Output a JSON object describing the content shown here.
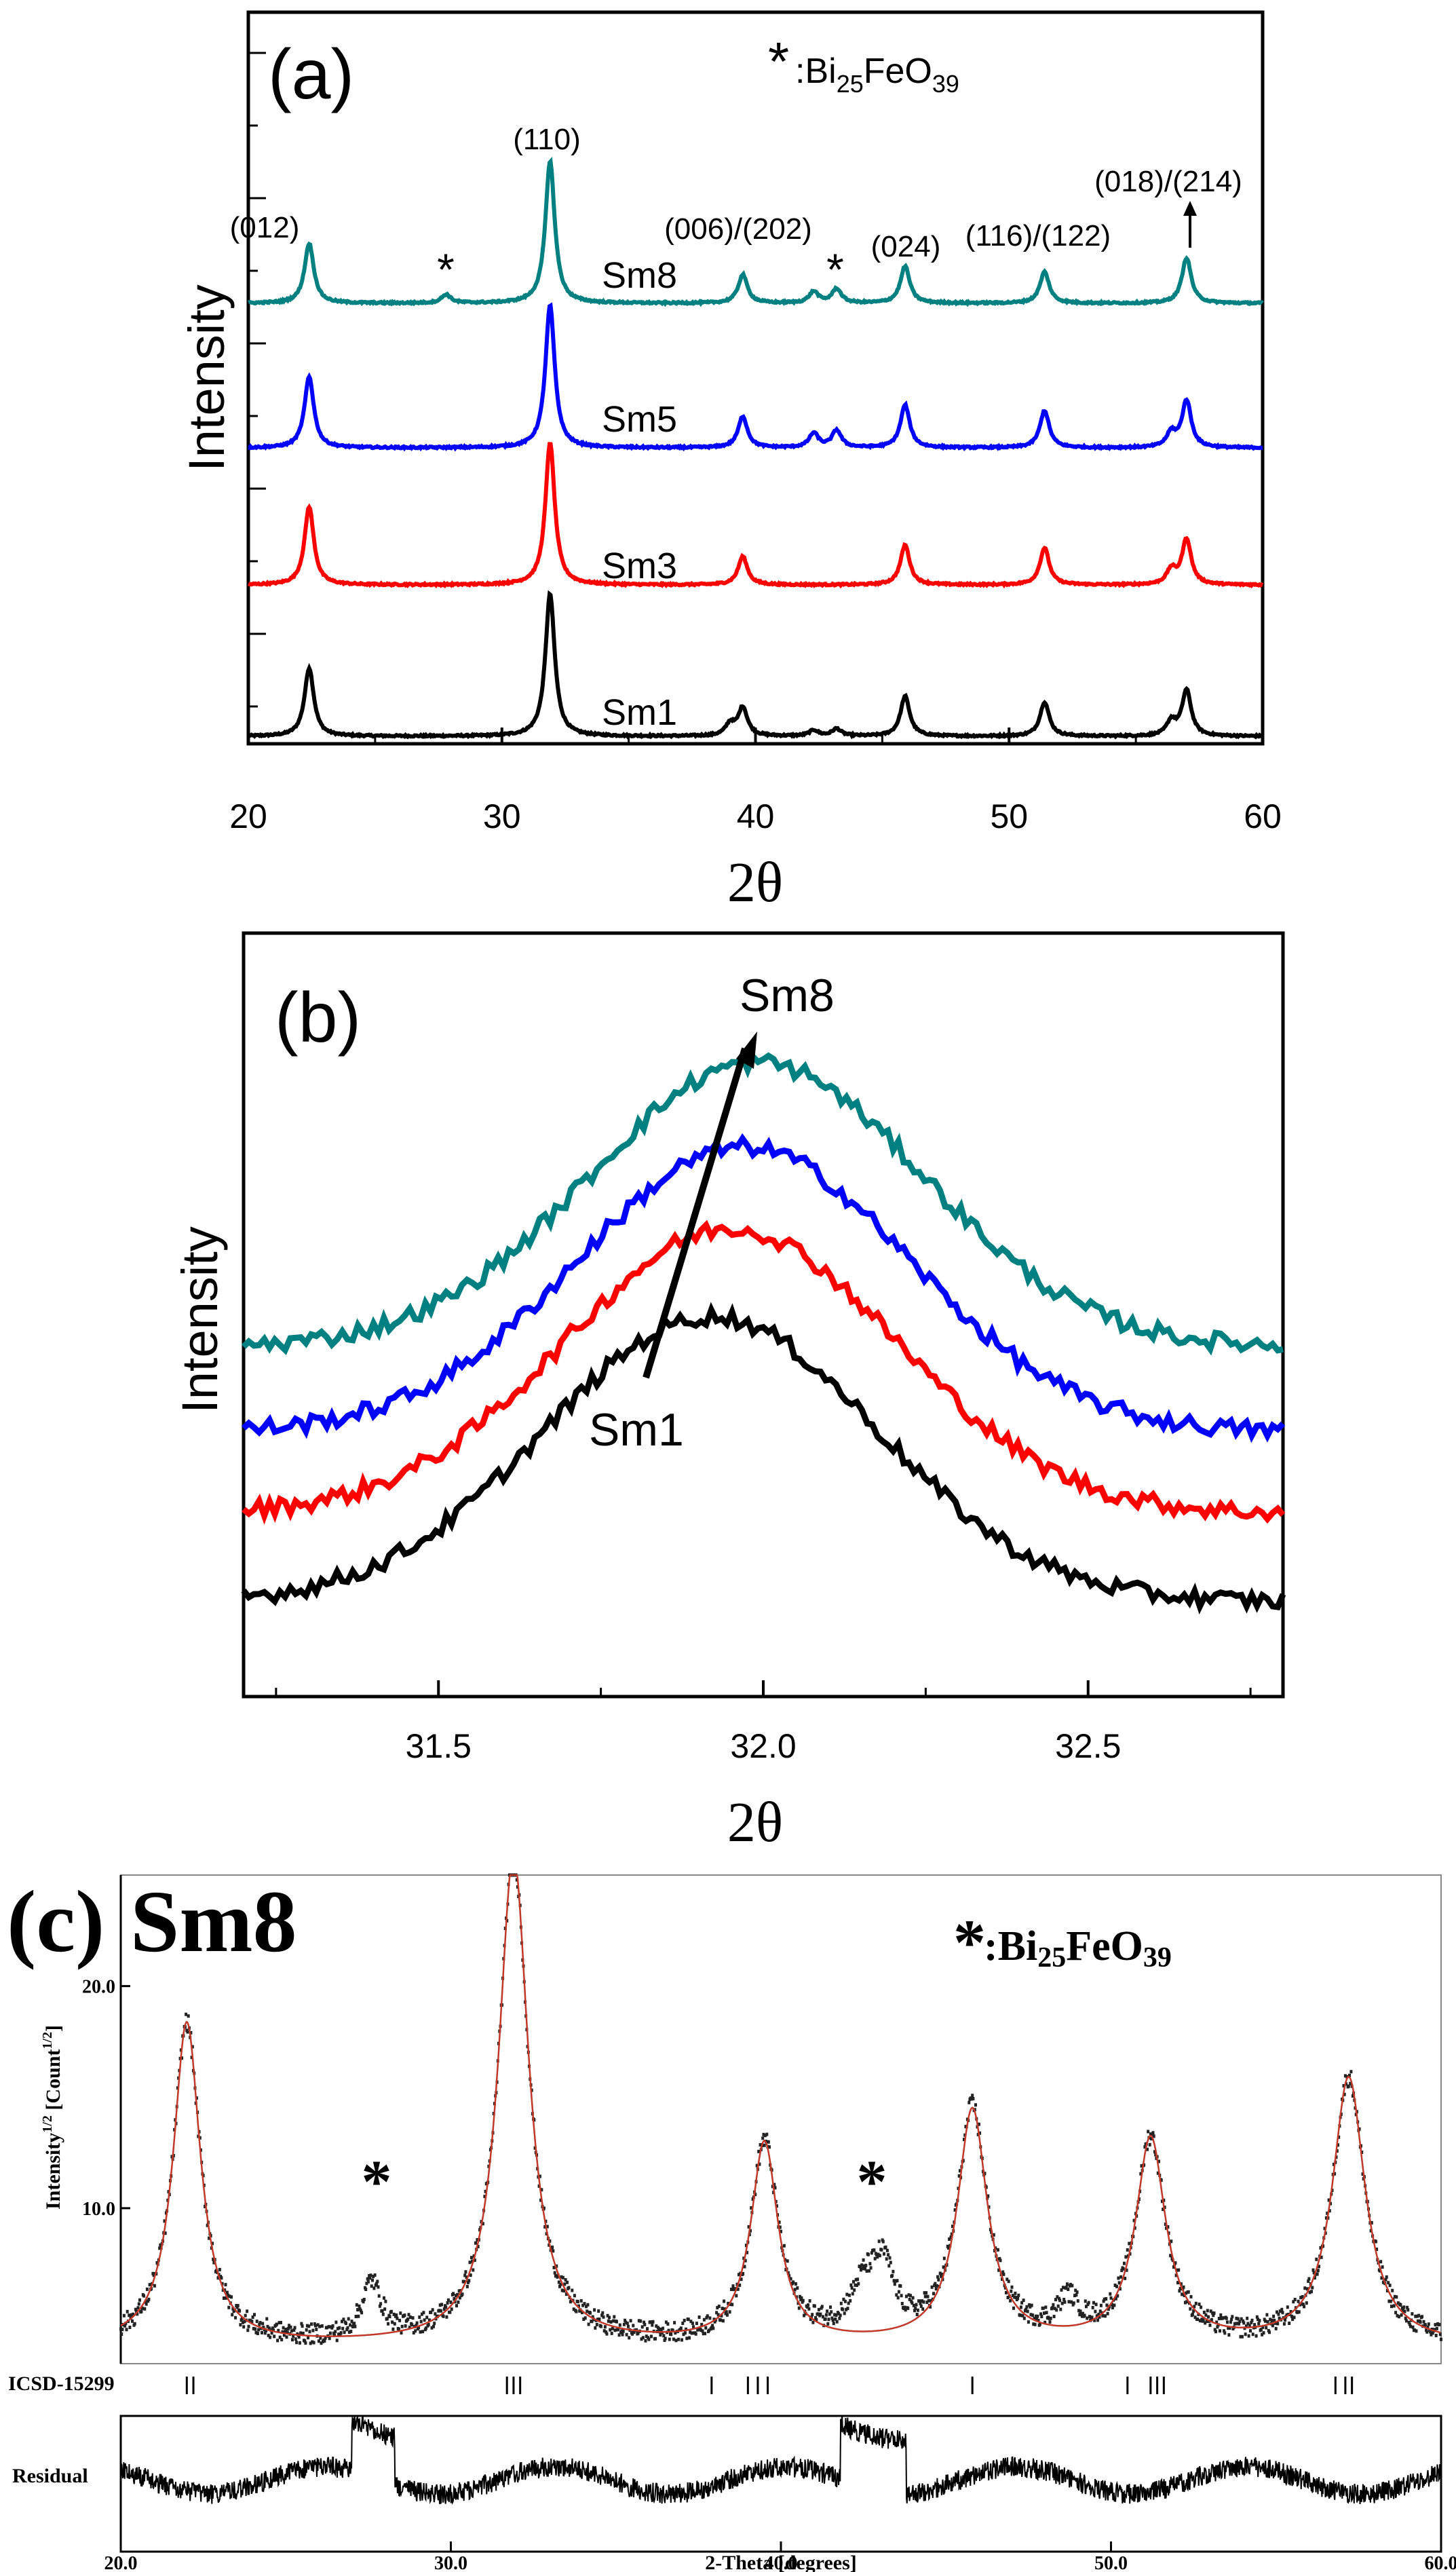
{
  "figure": {
    "panel_a": {
      "label": "(a)",
      "legend_star": "*",
      "legend_phase": "Bi",
      "legend_sub1": "25",
      "legend_mid": "FeO",
      "legend_sub2": "39",
      "peak_labels": [
        {
          "text": "(012)",
          "x": 22.4
        },
        {
          "text": "(110)",
          "x": 31.9
        },
        {
          "text": "(006)/(202)",
          "x": 39.5
        },
        {
          "text": "(024)",
          "x": 45.9
        },
        {
          "text": "(116)/(122)",
          "x": 51.4
        },
        {
          "text": "(018)/(214)",
          "x": 57.0
        }
      ],
      "star_marks": [
        {
          "text": "*",
          "x": 27.8
        },
        {
          "text": "*",
          "x": 43.2
        }
      ],
      "series_labels": [
        "Sm8",
        "Sm5",
        "Sm3",
        "Sm1"
      ]
    },
    "panel_b": {
      "label": "(b)",
      "arrow_top_label": "Sm8",
      "arrow_bottom_label": "Sm1"
    },
    "panel_c": {
      "label": "(c)",
      "sample": "Sm8",
      "legend_star": "*",
      "legend_text": ":Bi",
      "legend_sub1": "25",
      "legend_mid": "FeO",
      "legend_sub2": "39",
      "star_marks": [
        {
          "text": "*",
          "x": 27.8
        },
        {
          "text": "*",
          "x": 42.8
        }
      ],
      "tick_row_label": "ICSD-15299",
      "residual_label": "Residual"
    }
  },
  "chart_data": [
    {
      "type": "line",
      "panel": "a",
      "title": "",
      "xlabel": "2θ",
      "ylabel": "Intensity",
      "xlim": [
        20,
        60
      ],
      "xticks": [
        "20",
        "30",
        "40",
        "50",
        "60"
      ],
      "grid": false,
      "series": [
        {
          "name": "Sm1",
          "color": "#000000",
          "offset": 0,
          "peaks": [
            [
              22.4,
              0.48
            ],
            [
              31.9,
              1.0
            ],
            [
              39.0,
              0.08
            ],
            [
              39.5,
              0.2
            ],
            [
              42.3,
              0.04
            ],
            [
              43.2,
              0.05
            ],
            [
              45.9,
              0.28
            ],
            [
              51.4,
              0.24
            ],
            [
              56.4,
              0.1
            ],
            [
              57.0,
              0.32
            ]
          ]
        },
        {
          "name": "Sm3",
          "color": "#ff0000",
          "offset": 1,
          "peaks": [
            [
              22.4,
              0.55
            ],
            [
              31.9,
              1.0
            ],
            [
              39.5,
              0.2
            ],
            [
              45.9,
              0.28
            ],
            [
              51.4,
              0.26
            ],
            [
              56.4,
              0.1
            ],
            [
              57.0,
              0.32
            ]
          ]
        },
        {
          "name": "Sm5",
          "color": "#0000ff",
          "offset": 2,
          "peaks": [
            [
              22.4,
              0.5
            ],
            [
              31.9,
              1.0
            ],
            [
              39.5,
              0.22
            ],
            [
              42.3,
              0.1
            ],
            [
              43.2,
              0.12
            ],
            [
              45.9,
              0.3
            ],
            [
              51.4,
              0.26
            ],
            [
              56.4,
              0.1
            ],
            [
              57.0,
              0.33
            ]
          ]
        },
        {
          "name": "Sm8",
          "color": "#008080",
          "offset": 3,
          "peaks": [
            [
              22.4,
              0.42
            ],
            [
              27.8,
              0.06
            ],
            [
              31.9,
              1.0
            ],
            [
              39.5,
              0.2
            ],
            [
              42.3,
              0.08
            ],
            [
              43.2,
              0.1
            ],
            [
              45.9,
              0.26
            ],
            [
              51.4,
              0.22
            ],
            [
              57.0,
              0.32
            ]
          ]
        }
      ]
    },
    {
      "type": "line",
      "panel": "b",
      "title": "",
      "xlabel": "2θ",
      "ylabel": "Intensity",
      "xlim": [
        31.2,
        32.8
      ],
      "xticks": [
        "31.5",
        "32.0",
        "32.5"
      ],
      "grid": false,
      "series": [
        {
          "name": "Sm1",
          "color": "#000000",
          "center": 31.92,
          "offset": 0
        },
        {
          "name": "Sm3",
          "color": "#ff0000",
          "center": 31.95,
          "offset": 1
        },
        {
          "name": "Sm5",
          "color": "#0000ff",
          "center": 31.97,
          "offset": 2
        },
        {
          "name": "Sm8",
          "color": "#008080",
          "center": 31.99,
          "offset": 3
        }
      ]
    },
    {
      "type": "scatter",
      "panel": "c",
      "title": "",
      "xlabel": "2-Theta [degrees]",
      "ylabel": "Intensity",
      "ylabel_sup1": "1/2",
      "ylabel_mid": " [Count",
      "ylabel_sup2": "1/2",
      "ylabel_end": "]",
      "xlim": [
        20,
        60
      ],
      "ylim": [
        3,
        25
      ],
      "xticks": [
        "20.0",
        "30.0",
        "40.0",
        "50.0",
        "60.0"
      ],
      "yticks": [
        "10.0",
        "20.0"
      ],
      "background": 3.8,
      "peaks": [
        [
          22.0,
          14.5,
          0.5
        ],
        [
          27.6,
          2.5,
          0.35
        ],
        [
          31.9,
          22.0,
          0.55
        ],
        [
          39.5,
          9.0,
          0.5
        ],
        [
          42.5,
          2.0,
          0.5
        ],
        [
          43.1,
          2.8,
          0.4
        ],
        [
          45.8,
          10.5,
          0.55
        ],
        [
          48.7,
          1.5,
          0.4
        ],
        [
          51.2,
          9.2,
          0.55
        ],
        [
          57.2,
          12.0,
          0.6
        ]
      ],
      "reference_ticks": [
        22.0,
        22.2,
        31.7,
        31.9,
        32.1,
        37.9,
        39.0,
        39.3,
        39.6,
        45.8,
        50.5,
        51.2,
        51.4,
        51.6,
        56.8,
        57.1,
        57.3
      ]
    }
  ]
}
